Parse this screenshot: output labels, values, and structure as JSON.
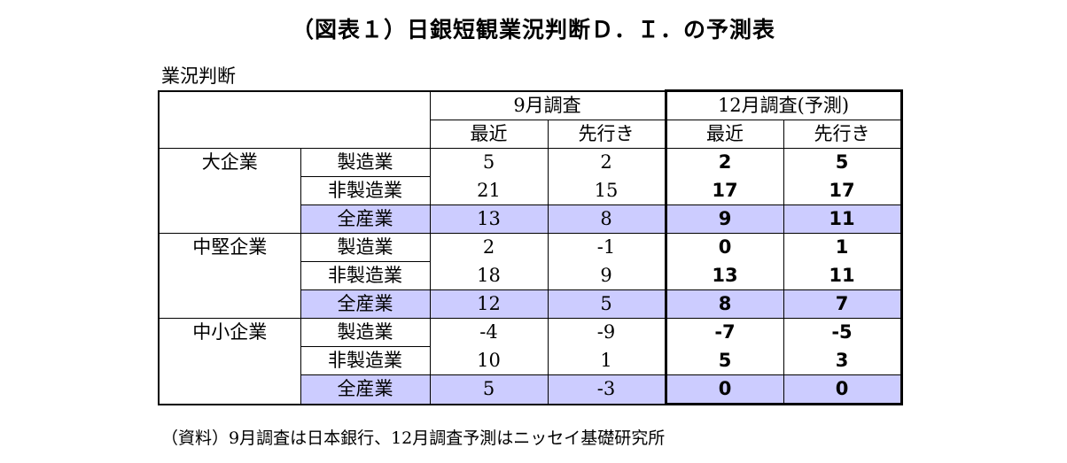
{
  "title": "（図表１）日銀短観業況判断Ｄ．Ｉ．の予測表",
  "unit_label": "業況判断",
  "header": {
    "sep_survey": "9月調査",
    "dec_survey": "12月調査(予測)",
    "recent": "最近",
    "forecast": "先行き"
  },
  "groups": [
    {
      "size": "大企業",
      "rows": [
        {
          "industry": "製造業",
          "sep_recent": "5",
          "sep_forecast": "2",
          "dec_recent": "2",
          "dec_forecast": "5"
        },
        {
          "industry": "非製造業",
          "sep_recent": "21",
          "sep_forecast": "15",
          "dec_recent": "17",
          "dec_forecast": "17"
        },
        {
          "industry": "全産業",
          "sep_recent": "13",
          "sep_forecast": "8",
          "dec_recent": "9",
          "dec_forecast": "11"
        }
      ]
    },
    {
      "size": "中堅企業",
      "rows": [
        {
          "industry": "製造業",
          "sep_recent": "2",
          "sep_forecast": "-1",
          "dec_recent": "0",
          "dec_forecast": "1"
        },
        {
          "industry": "非製造業",
          "sep_recent": "18",
          "sep_forecast": "9",
          "dec_recent": "13",
          "dec_forecast": "11"
        },
        {
          "industry": "全産業",
          "sep_recent": "12",
          "sep_forecast": "5",
          "dec_recent": "8",
          "dec_forecast": "7"
        }
      ]
    },
    {
      "size": "中小企業",
      "rows": [
        {
          "industry": "製造業",
          "sep_recent": "-4",
          "sep_forecast": "-9",
          "dec_recent": "-7",
          "dec_forecast": "-5"
        },
        {
          "industry": "非製造業",
          "sep_recent": "10",
          "sep_forecast": "1",
          "dec_recent": "5",
          "dec_forecast": "3"
        },
        {
          "industry": "全産業",
          "sep_recent": "5",
          "sep_forecast": "-3",
          "dec_recent": "0",
          "dec_forecast": "0"
        }
      ]
    }
  ],
  "highlight_color": "#ccccff",
  "source_note": "（資料）9月調査は日本銀行、12月調査予測はニッセイ基礎研究所"
}
